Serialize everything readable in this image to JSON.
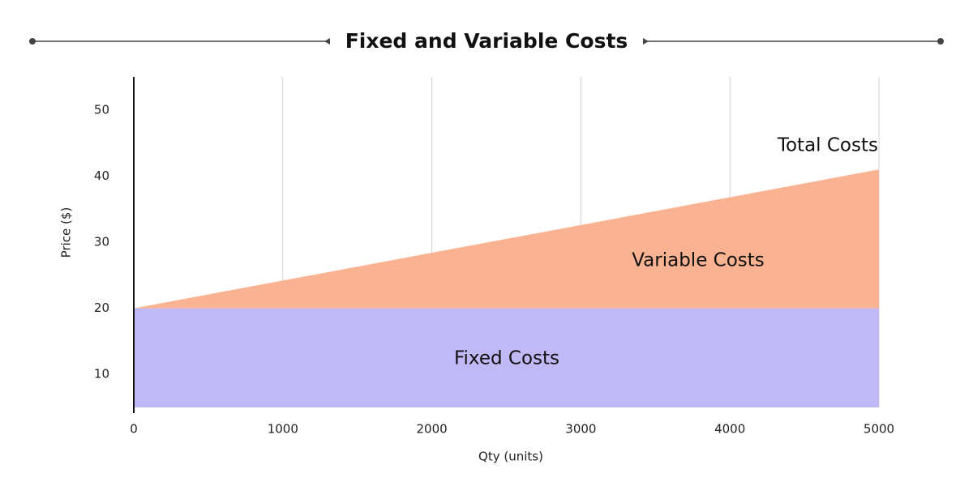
{
  "chart_data": {
    "type": "area",
    "stacked": true,
    "title": "Fixed and Variable Costs",
    "x_label": "Qty (units)",
    "y_label": "Price ($)",
    "x": [
      0,
      5000
    ],
    "series": [
      {
        "name": "Fixed Costs",
        "color": "#c1b9f5",
        "values": [
          20,
          20
        ]
      },
      {
        "name": "Variable Costs",
        "color": "#f9b292",
        "values": [
          0,
          21
        ]
      }
    ],
    "annotations": [
      "Total Costs"
    ],
    "xlim": [
      0,
      5000
    ],
    "xticks": [
      0,
      1000,
      2000,
      3000,
      4000,
      5000
    ],
    "ylim": [
      5,
      55
    ],
    "yticks": [
      10,
      20,
      30,
      40,
      50
    ],
    "grid": "x"
  }
}
